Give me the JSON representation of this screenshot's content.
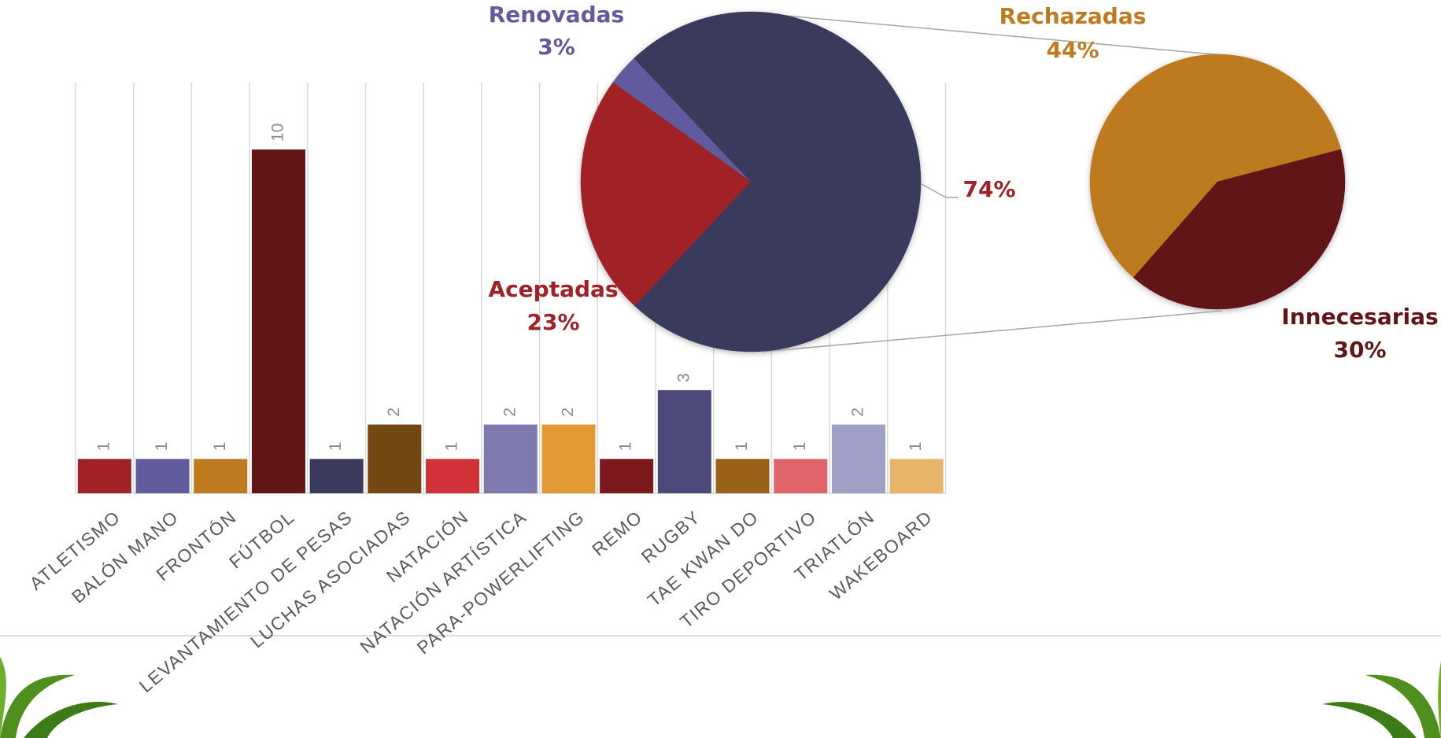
{
  "chart_data": [
    {
      "type": "bar",
      "categories": [
        "ATLETISMO",
        "BALÓN MANO",
        "FRONTÓN",
        "FÚTBOL",
        "LEVANTAMIENTO DE PESAS",
        "LUCHAS ASOCIADAS",
        "NATACIÓN",
        "NATACIÓN ARTÍSTICA",
        "PARA-POWERLIFTING",
        "REMO",
        "RUGBY",
        "TAE KWAN DO",
        "TIRO DEPORTIVO",
        "TRIATLÓN",
        "WAKEBOARD"
      ],
      "values": [
        1,
        1,
        1,
        10,
        1,
        2,
        1,
        2,
        2,
        1,
        3,
        1,
        1,
        2,
        1
      ],
      "colors": [
        "#a02226",
        "#615c9e",
        "#be7a1e",
        "#621517",
        "#3a3a5c",
        "#724813",
        "#d23237",
        "#7e7ab0",
        "#e19a34",
        "#7b191d",
        "#4d4a7b",
        "#9a6219",
        "#e06369",
        "#a09fc6",
        "#e8b46a"
      ]
    },
    {
      "type": "pie-of-pie",
      "categories": [
        "Renovadas",
        "Aceptadas",
        null
      ],
      "values": [
        3,
        23,
        74
      ],
      "value_labels": [
        "3%",
        "23%",
        "74%"
      ],
      "colors": [
        "#5f5b9e",
        "#a02226",
        "#3a3a5c"
      ],
      "label_colors": [
        "#5f5b9e",
        "#a02226",
        "#a02226"
      ],
      "secondary_categories": [
        "Rechazadas",
        "Innecesarias"
      ],
      "secondary_values": [
        44,
        30
      ],
      "secondary_value_labels": [
        "44%",
        "30%"
      ],
      "secondary_colors": [
        "#be7a1e",
        "#621517"
      ],
      "secondary_label_colors": [
        "#be7a1e",
        "#621517"
      ]
    }
  ]
}
